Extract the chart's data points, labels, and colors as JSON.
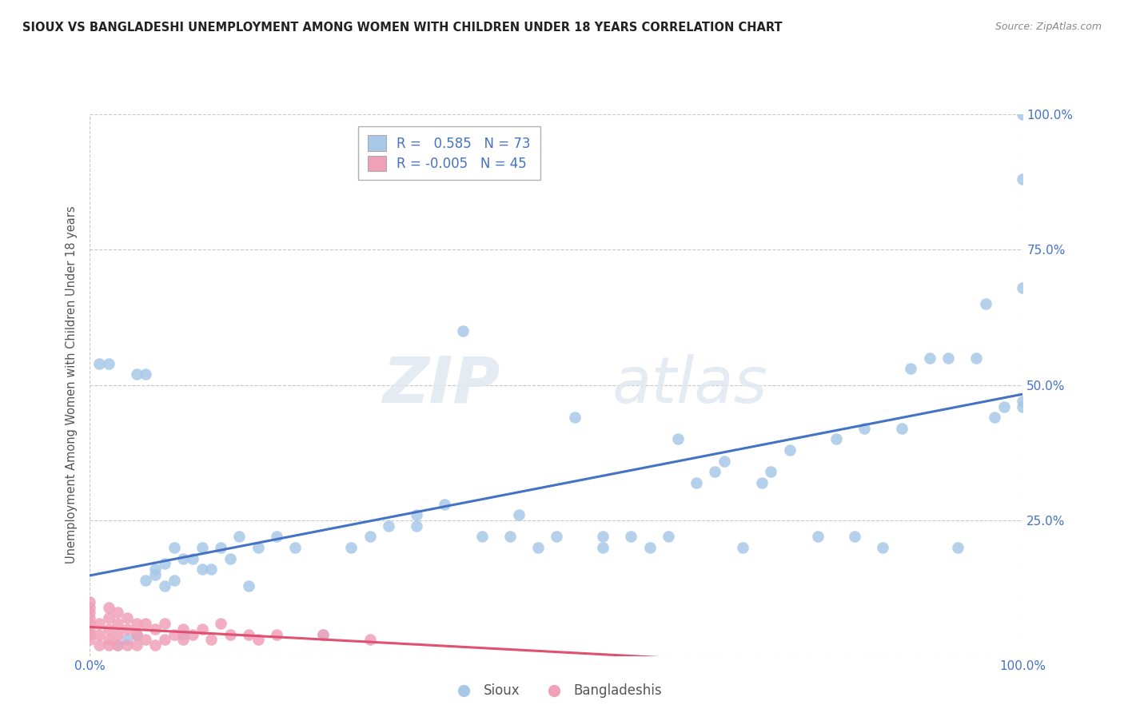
{
  "title": "SIOUX VS BANGLADESHI UNEMPLOYMENT AMONG WOMEN WITH CHILDREN UNDER 18 YEARS CORRELATION CHART",
  "source": "Source: ZipAtlas.com",
  "ylabel": "Unemployment Among Women with Children Under 18 years",
  "legend_sioux": "Sioux",
  "legend_bangladeshi": "Bangladeshis",
  "r_sioux": 0.585,
  "n_sioux": 73,
  "r_bangladeshi": -0.005,
  "n_bangladeshi": 45,
  "sioux_color": "#a8c8e8",
  "bangladeshi_color": "#f0a0b8",
  "sioux_line_color": "#4472c4",
  "bangladeshi_line_color": "#e05070",
  "watermark_zip": "ZIP",
  "watermark_atlas": "atlas",
  "background_color": "#ffffff",
  "grid_color": "#c8c8c8",
  "xlim": [
    0.0,
    1.0
  ],
  "ylim": [
    0.0,
    1.0
  ],
  "yticks": [
    0.0,
    0.25,
    0.5,
    0.75,
    1.0
  ],
  "ytick_labels": [
    "",
    "25.0%",
    "50.0%",
    "75.0%",
    "100.0%"
  ],
  "xtick_labels": [
    "0.0%",
    "100.0%"
  ],
  "sioux_x": [
    0.01,
    0.02,
    0.03,
    0.04,
    0.05,
    0.05,
    0.06,
    0.06,
    0.07,
    0.07,
    0.08,
    0.08,
    0.09,
    0.09,
    0.1,
    0.1,
    0.11,
    0.12,
    0.12,
    0.13,
    0.14,
    0.15,
    0.16,
    0.17,
    0.18,
    0.2,
    0.22,
    0.25,
    0.28,
    0.3,
    0.32,
    0.35,
    0.35,
    0.38,
    0.4,
    0.42,
    0.45,
    0.46,
    0.48,
    0.5,
    0.52,
    0.55,
    0.55,
    0.58,
    0.6,
    0.62,
    0.63,
    0.65,
    0.67,
    0.68,
    0.7,
    0.72,
    0.73,
    0.75,
    0.78,
    0.8,
    0.82,
    0.83,
    0.85,
    0.87,
    0.88,
    0.9,
    0.92,
    0.93,
    0.95,
    0.96,
    0.97,
    0.98,
    1.0,
    1.0,
    1.0,
    1.0,
    1.0
  ],
  "sioux_y": [
    0.54,
    0.54,
    0.02,
    0.03,
    0.04,
    0.52,
    0.52,
    0.14,
    0.15,
    0.16,
    0.13,
    0.17,
    0.14,
    0.2,
    0.04,
    0.18,
    0.18,
    0.2,
    0.16,
    0.16,
    0.2,
    0.18,
    0.22,
    0.13,
    0.2,
    0.22,
    0.2,
    0.04,
    0.2,
    0.22,
    0.24,
    0.24,
    0.26,
    0.28,
    0.6,
    0.22,
    0.22,
    0.26,
    0.2,
    0.22,
    0.44,
    0.2,
    0.22,
    0.22,
    0.2,
    0.22,
    0.4,
    0.32,
    0.34,
    0.36,
    0.2,
    0.32,
    0.34,
    0.38,
    0.22,
    0.4,
    0.22,
    0.42,
    0.2,
    0.42,
    0.53,
    0.55,
    0.55,
    0.2,
    0.55,
    0.65,
    0.44,
    0.46,
    0.46,
    0.68,
    1.0,
    0.88,
    0.47
  ],
  "bangladeshi_x": [
    0.0,
    0.0,
    0.0,
    0.0,
    0.0,
    0.0,
    0.0,
    0.0,
    0.01,
    0.01,
    0.01,
    0.02,
    0.02,
    0.02,
    0.02,
    0.02,
    0.03,
    0.03,
    0.03,
    0.03,
    0.04,
    0.04,
    0.04,
    0.05,
    0.05,
    0.05,
    0.06,
    0.06,
    0.07,
    0.07,
    0.08,
    0.08,
    0.09,
    0.1,
    0.1,
    0.11,
    0.12,
    0.13,
    0.14,
    0.15,
    0.17,
    0.18,
    0.2,
    0.25,
    0.3
  ],
  "bangladeshi_y": [
    0.03,
    0.04,
    0.05,
    0.06,
    0.07,
    0.08,
    0.09,
    0.1,
    0.02,
    0.04,
    0.06,
    0.02,
    0.03,
    0.05,
    0.07,
    0.09,
    0.02,
    0.04,
    0.06,
    0.08,
    0.02,
    0.05,
    0.07,
    0.02,
    0.04,
    0.06,
    0.03,
    0.06,
    0.02,
    0.05,
    0.03,
    0.06,
    0.04,
    0.03,
    0.05,
    0.04,
    0.05,
    0.03,
    0.06,
    0.04,
    0.04,
    0.03,
    0.04,
    0.04,
    0.03
  ]
}
